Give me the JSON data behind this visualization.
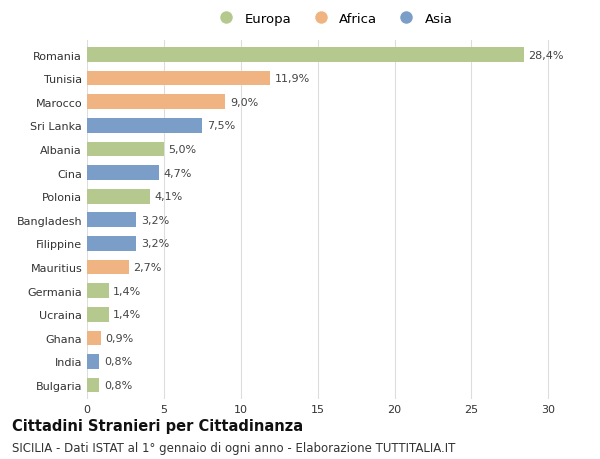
{
  "countries": [
    "Romania",
    "Tunisia",
    "Marocco",
    "Sri Lanka",
    "Albania",
    "Cina",
    "Polonia",
    "Bangladesh",
    "Filippine",
    "Mauritius",
    "Germania",
    "Ucraina",
    "Ghana",
    "India",
    "Bulgaria"
  ],
  "values": [
    28.4,
    11.9,
    9.0,
    7.5,
    5.0,
    4.7,
    4.1,
    3.2,
    3.2,
    2.7,
    1.4,
    1.4,
    0.9,
    0.8,
    0.8
  ],
  "labels": [
    "28,4%",
    "11,9%",
    "9,0%",
    "7,5%",
    "5,0%",
    "4,7%",
    "4,1%",
    "3,2%",
    "3,2%",
    "2,7%",
    "1,4%",
    "1,4%",
    "0,9%",
    "0,8%",
    "0,8%"
  ],
  "continents": [
    "Europa",
    "Africa",
    "Africa",
    "Asia",
    "Europa",
    "Asia",
    "Europa",
    "Asia",
    "Asia",
    "Africa",
    "Europa",
    "Europa",
    "Africa",
    "Asia",
    "Europa"
  ],
  "colors": {
    "Europa": "#b5c98e",
    "Africa": "#f0b482",
    "Asia": "#7b9ec9"
  },
  "title": "Cittadini Stranieri per Cittadinanza",
  "subtitle": "SICILIA - Dati ISTAT al 1° gennaio di ogni anno - Elaborazione TUTTITALIA.IT",
  "xlim": [
    0,
    32
  ],
  "xticks": [
    0,
    5,
    10,
    15,
    20,
    25,
    30
  ],
  "bg_color": "#ffffff",
  "grid_color": "#dddddd",
  "bar_height": 0.62,
  "label_fontsize": 8,
  "tick_fontsize": 8,
  "title_fontsize": 10.5,
  "subtitle_fontsize": 8.5
}
